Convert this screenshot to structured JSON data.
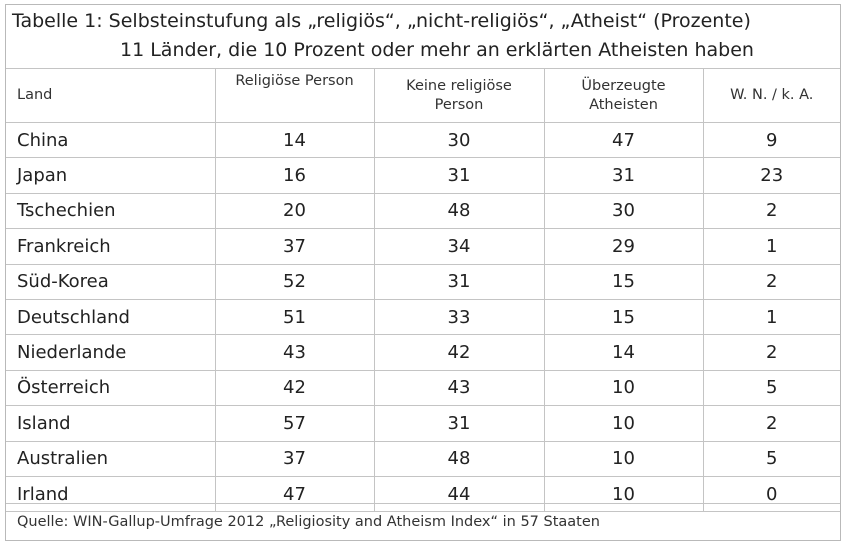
{
  "title": {
    "line1": "Tabelle 1: Selbsteinstufung als „religiös“, „nicht-religiös“, „Atheist“ (Prozente)",
    "line2": "11 Länder, die 10 Prozent oder mehr an erklärten Atheisten haben"
  },
  "headers": {
    "land": "Land",
    "religious": "Religiöse Person",
    "nonreligious_line1": "Keine religiöse",
    "nonreligious_line2": "Person",
    "atheists_line1": "Überzeugte",
    "atheists_line2": "Atheisten",
    "unknown": "W. N. / k. A."
  },
  "rows": [
    {
      "land": "China",
      "religious": "14",
      "nonreligious": "30",
      "atheists": "47",
      "unknown": "9"
    },
    {
      "land": "Japan",
      "religious": "16",
      "nonreligious": "31",
      "atheists": "31",
      "unknown": "23"
    },
    {
      "land": "Tschechien",
      "religious": "20",
      "nonreligious": "48",
      "atheists": "30",
      "unknown": "2"
    },
    {
      "land": "Frankreich",
      "religious": "37",
      "nonreligious": "34",
      "atheists": "29",
      "unknown": "1"
    },
    {
      "land": "Süd-Korea",
      "religious": "52",
      "nonreligious": "31",
      "atheists": "15",
      "unknown": "2"
    },
    {
      "land": "Deutschland",
      "religious": "51",
      "nonreligious": "33",
      "atheists": "15",
      "unknown": "1"
    },
    {
      "land": "Niederlande",
      "religious": "43",
      "nonreligious": "42",
      "atheists": "14",
      "unknown": "2"
    },
    {
      "land": "Österreich",
      "religious": "42",
      "nonreligious": "43",
      "atheists": "10",
      "unknown": "5"
    },
    {
      "land": "Island",
      "religious": "57",
      "nonreligious": "31",
      "atheists": "10",
      "unknown": "2"
    },
    {
      "land": "Australien",
      "religious": "37",
      "nonreligious": "48",
      "atheists": "10",
      "unknown": "5"
    },
    {
      "land": "Irland",
      "religious": "47",
      "nonreligious": "44",
      "atheists": "10",
      "unknown": "0"
    }
  ],
  "source": "Quelle: WIN-Gallup-Umfrage 2012 „Religiosity and Atheism Index“ in 57 Staaten"
}
